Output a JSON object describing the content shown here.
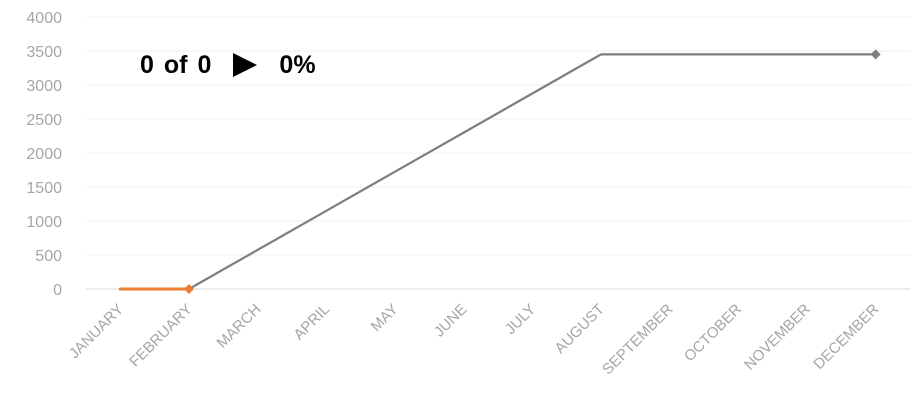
{
  "status": {
    "done": "0",
    "of_label": "of",
    "total": "0",
    "arrow_icon": "play-triangle-icon",
    "percent": "0%"
  },
  "chart_data": {
    "type": "line",
    "title": "",
    "xlabel": "",
    "ylabel": "",
    "categories": [
      "JANUARY",
      "FEBRUARY",
      "MARCH",
      "APRIL",
      "MAY",
      "JUNE",
      "JULY",
      "AUGUST",
      "SEPTEMBER",
      "OCTOBER",
      "NOVEMBER",
      "DECEMBER"
    ],
    "ylim": [
      0,
      4000
    ],
    "yticks": [
      0,
      500,
      1000,
      1500,
      2000,
      2500,
      3000,
      3500,
      4000
    ],
    "grid": true,
    "legend": "none",
    "series": [
      {
        "color": "#7f7f7f",
        "values": [
          null,
          0,
          575,
          1150,
          1725,
          2300,
          2875,
          3450,
          3450,
          3450,
          3450,
          3450
        ]
      },
      {
        "color": "#ed7d31",
        "values": [
          0,
          0,
          null,
          null,
          null,
          null,
          null,
          null,
          null,
          null,
          null,
          null
        ]
      }
    ],
    "markers": [
      {
        "category": "FEBRUARY",
        "value": 0,
        "color": "#ed7d31"
      },
      {
        "category": "DECEMBER",
        "value": 3450,
        "color": "#7f7f7f"
      }
    ]
  }
}
